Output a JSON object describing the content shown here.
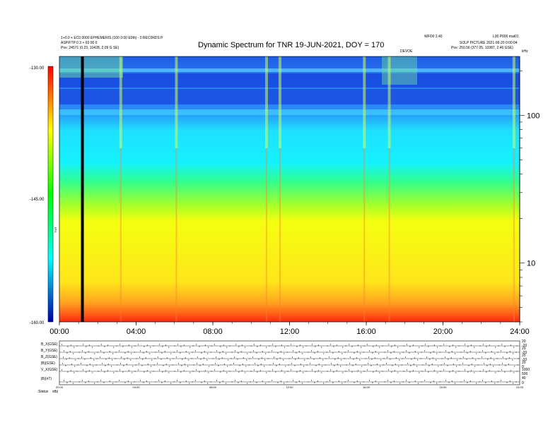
{
  "header": {
    "title": "Dynamic Spectrum for TNR 19-JUN-2021, DOY = 170",
    "left_line1": "1+0.0 + EC0 0000 EPHEMERIS (100 0:00 E0th) - 0 REC0RDS P",
    "left_line2": "ASP/FTP 0 3 + 60 00 0",
    "left_line3": "Pos:   24571 (0.23, 10428, 2.09 G SE)",
    "right_top1": "WFO0 2.40",
    "right_top2": "L00 P000 mat01",
    "right_line2": "SOLP PICTURE 2021-06-20 0:00:04",
    "right_line3": "Pos:   250.56 (377.05, 10387, 2.46 GSE)",
    "marker": "DEVOE",
    "khz": "kHz"
  },
  "chart_data": {
    "type": "heatmap",
    "title": "Dynamic Spectrum for TNR 19-JUN-2021, DOY = 170",
    "x_ticks": [
      "00:00",
      "04:00",
      "08:00",
      "12:00",
      "16:00",
      "20:00",
      "24:00"
    ],
    "x_range_hours": [
      0,
      24
    ],
    "y_axis": "frequency (kHz), log scale",
    "y_ticks": [
      "100",
      "10"
    ],
    "y_range_khz": [
      4,
      250
    ],
    "colorbar": {
      "label": "TNR",
      "ticks": [
        "-130.00",
        "-145.00",
        "-160.00"
      ],
      "range": [
        -160,
        -130
      ],
      "colormap": [
        "#000080",
        "#0000ff",
        "#00ffff",
        "#00ff00",
        "#ffff00",
        "#ff0000",
        "#800000"
      ]
    },
    "bands": [
      {
        "f_low_khz": 120,
        "f_high_khz": 250,
        "level_db": -132,
        "label": "dark blue"
      },
      {
        "f_low_khz": 50,
        "f_high_khz": 120,
        "level_db": -138,
        "label": "cyan"
      },
      {
        "f_low_khz": 25,
        "f_high_khz": 50,
        "level_db": -143,
        "label": "green"
      },
      {
        "f_low_khz": 7,
        "f_high_khz": 25,
        "level_db": -148,
        "label": "yellow"
      },
      {
        "f_low_khz": 4,
        "f_high_khz": 7,
        "level_db": -153,
        "label": "orange-red"
      }
    ],
    "vertical_features_hours": [
      3.2,
      6.1,
      10.8,
      11.5,
      15.9,
      17.2,
      23.7
    ],
    "data_gap_hours": 1.2
  },
  "panels": {
    "bottom_ticks": [
      "00:00",
      "04:00",
      "08:00",
      "12:00",
      "16:00",
      "20:00",
      "24:00"
    ],
    "left_labels": [
      "B_X(GSE)",
      "B_Y(GSE)",
      "B_Z(GSE)",
      "|B|(GSE)",
      "V_X(GSE)",
      "|B|(nT)"
    ],
    "right_labels": [
      "20",
      "-20",
      "20",
      "-20",
      "20",
      "-20",
      "20",
      "0",
      "1000",
      "500",
      "40",
      "0"
    ],
    "status_label": "Status",
    "status_value": "stbj"
  }
}
